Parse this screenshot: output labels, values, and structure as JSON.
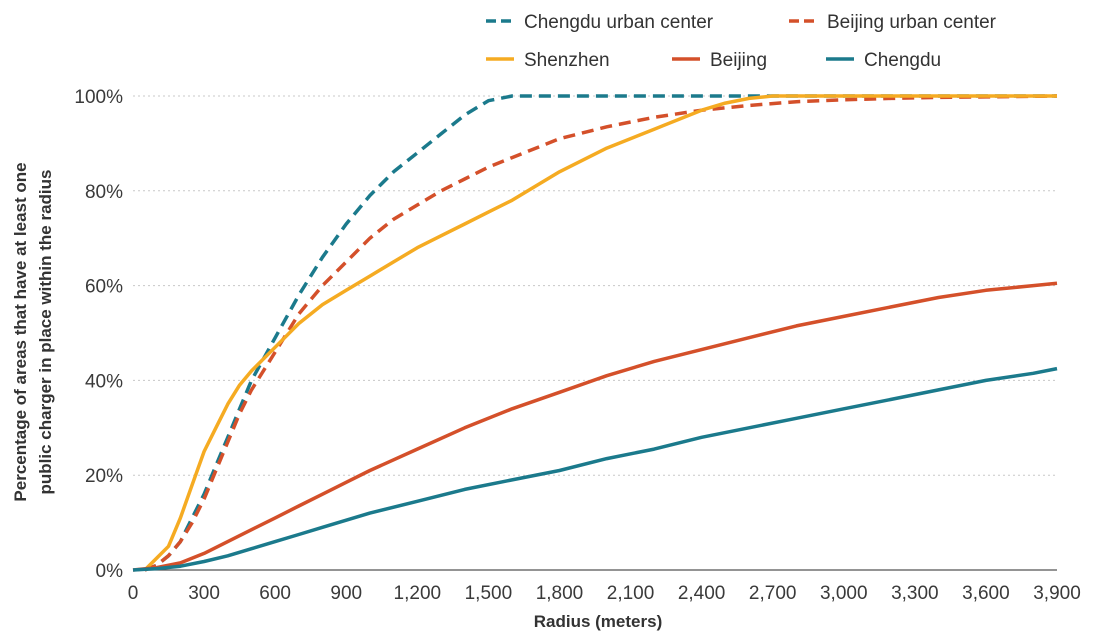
{
  "chart_data": {
    "type": "line",
    "title": "",
    "xlabel": "Radius (meters)",
    "ylabel_lines": [
      "Percentage of areas that have at least one",
      "public charger in place within the radius"
    ],
    "xlim": [
      0,
      3900
    ],
    "ylim": [
      0,
      100
    ],
    "x_ticks": [
      0,
      300,
      600,
      900,
      1200,
      1500,
      1800,
      2100,
      2400,
      2700,
      3000,
      3300,
      3600,
      3900
    ],
    "x_tick_labels": [
      "0",
      "300",
      "600",
      "900",
      "1,200",
      "1,500",
      "1,800",
      "2,100",
      "2,400",
      "2,700",
      "3,000",
      "3,300",
      "3,600",
      "3,900"
    ],
    "y_ticks": [
      0,
      20,
      40,
      60,
      80,
      100
    ],
    "y_tick_labels": [
      "0%",
      "20%",
      "40%",
      "60%",
      "80%",
      "100%"
    ],
    "grid": "horizontal dotted",
    "legend_placement": "top-right",
    "series": [
      {
        "name": "Chengdu urban center",
        "color": "#1b7a8c",
        "style": "dashed",
        "x": [
          50,
          100,
          150,
          200,
          250,
          300,
          350,
          400,
          450,
          500,
          600,
          700,
          800,
          900,
          1000,
          1100,
          1200,
          1300,
          1400,
          1500,
          1600,
          2000,
          2500,
          3000,
          3500,
          3900
        ],
        "y": [
          0,
          1,
          3,
          6,
          11,
          16,
          22,
          28,
          34,
          40,
          49,
          58,
          66,
          73,
          79,
          84,
          88,
          92,
          96,
          99,
          100,
          100,
          100,
          100,
          100,
          100
        ]
      },
      {
        "name": "Beijing urban center",
        "color": "#d4502a",
        "style": "dashed",
        "x": [
          50,
          100,
          150,
          200,
          250,
          300,
          350,
          400,
          450,
          500,
          600,
          700,
          800,
          900,
          1000,
          1100,
          1200,
          1300,
          1400,
          1500,
          1600,
          1800,
          2000,
          2200,
          2400,
          2600,
          2800,
          3000,
          3200,
          3400,
          3600,
          3900
        ],
        "y": [
          0,
          1,
          3,
          6,
          10,
          15,
          21,
          27,
          33,
          38,
          46,
          54,
          60,
          65,
          70,
          74,
          77,
          80,
          82.5,
          85,
          87,
          91,
          93.5,
          95.5,
          97,
          98,
          98.8,
          99.2,
          99.5,
          99.7,
          99.8,
          100
        ]
      },
      {
        "name": "Shenzhen",
        "color": "#f5ab22",
        "style": "solid",
        "x": [
          50,
          100,
          150,
          200,
          250,
          300,
          350,
          400,
          450,
          500,
          600,
          700,
          800,
          900,
          1000,
          1100,
          1200,
          1300,
          1400,
          1500,
          1600,
          1800,
          2000,
          2200,
          2400,
          2500,
          2600,
          2700,
          3000,
          3300,
          3600,
          3900
        ],
        "y": [
          0,
          2.5,
          5,
          11,
          18,
          25,
          30,
          35,
          39,
          42,
          47,
          52,
          56,
          59,
          62,
          65,
          68,
          70.5,
          73,
          75.5,
          78,
          84,
          89,
          93,
          97,
          98.5,
          99.5,
          100,
          100,
          100,
          100,
          100
        ]
      },
      {
        "name": "Beijing",
        "color": "#d4502a",
        "style": "solid",
        "x": [
          0,
          100,
          200,
          300,
          400,
          500,
          600,
          700,
          800,
          900,
          1000,
          1200,
          1400,
          1600,
          1800,
          2000,
          2200,
          2400,
          2600,
          2800,
          3000,
          3200,
          3400,
          3600,
          3800,
          3900
        ],
        "y": [
          0,
          0.5,
          1.5,
          3.5,
          6,
          8.5,
          11,
          13.5,
          16,
          18.5,
          21,
          25.5,
          30,
          34,
          37.5,
          41,
          44,
          46.5,
          49,
          51.5,
          53.5,
          55.5,
          57.5,
          59,
          60,
          60.5
        ]
      },
      {
        "name": "Chengdu",
        "color": "#1b7a8c",
        "style": "solid",
        "x": [
          0,
          100,
          200,
          300,
          400,
          500,
          600,
          700,
          800,
          900,
          1000,
          1200,
          1400,
          1600,
          1800,
          2000,
          2200,
          2400,
          2600,
          2800,
          3000,
          3200,
          3400,
          3600,
          3800,
          3900
        ],
        "y": [
          0,
          0.3,
          0.8,
          1.8,
          3,
          4.5,
          6,
          7.5,
          9,
          10.5,
          12,
          14.5,
          17,
          19,
          21,
          23.5,
          25.5,
          28,
          30,
          32,
          34,
          36,
          38,
          40,
          41.5,
          42.5
        ]
      }
    ]
  }
}
